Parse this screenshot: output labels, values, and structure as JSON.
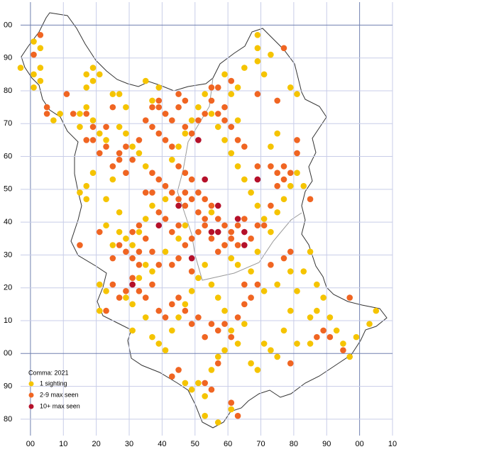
{
  "chart_data": {
    "type": "scatter",
    "legend_title": "Comma:  2021",
    "xlim": [
      -3,
      110
    ],
    "ylim": [
      -25,
      107
    ],
    "xticks": [
      {
        "value": 0,
        "label": "00"
      },
      10,
      20,
      30,
      40,
      50,
      60,
      70,
      80,
      90,
      {
        "value": 100,
        "label": "00"
      },
      {
        "value": 110,
        "label": "10"
      }
    ],
    "yticks": [
      {
        "value": 100,
        "label": "00"
      },
      90,
      80,
      70,
      60,
      50,
      40,
      30,
      20,
      10,
      {
        "value": 0,
        "label": "00"
      },
      {
        "value": -10,
        "label": "90"
      },
      {
        "value": -20,
        "label": "80"
      }
    ],
    "grid": true,
    "series": [
      {
        "name": "1 sighting",
        "color": "#f5c400",
        "x": [
          1,
          3,
          -3,
          1,
          3,
          1,
          3,
          7,
          9,
          17,
          19,
          17,
          19,
          21,
          15,
          17,
          15,
          19,
          21,
          23,
          25,
          27,
          29,
          27,
          29,
          31,
          33,
          35,
          25,
          23,
          17,
          19,
          15,
          17,
          27,
          23,
          27,
          29,
          25,
          31,
          33,
          35,
          37,
          41,
          35,
          37,
          33,
          21,
          23,
          21,
          29,
          31,
          31,
          35,
          37,
          39,
          41,
          43,
          45,
          47,
          49,
          51,
          53,
          55,
          57,
          59,
          61,
          63,
          65,
          67,
          69,
          71,
          73,
          75,
          77,
          79,
          81,
          83,
          85,
          87,
          89,
          91,
          93,
          95,
          97,
          99,
          105,
          103,
          47,
          49,
          51,
          53,
          55,
          57,
          59,
          53,
          57,
          61,
          43,
          45,
          47,
          49,
          51,
          53,
          55,
          57,
          59,
          61,
          63,
          65,
          67,
          69,
          71,
          73,
          75,
          77,
          79,
          81,
          83,
          61,
          63,
          59,
          65,
          69,
          69,
          71,
          69,
          73,
          79,
          81,
          75,
          73,
          41,
          45,
          47,
          55,
          59,
          61,
          63,
          67,
          69,
          71,
          75,
          79,
          81,
          85,
          85,
          87,
          63,
          39,
          37,
          35
        ],
        "y": [
          95,
          93,
          87,
          85,
          87,
          81,
          83,
          71,
          73,
          85,
          87,
          81,
          83,
          85,
          73,
          75,
          69,
          71,
          67,
          65,
          79,
          79,
          75,
          69,
          67,
          63,
          61,
          57,
          53,
          47,
          51,
          55,
          49,
          47,
          43,
          39,
          37,
          35,
          33,
          33,
          37,
          41,
          45,
          47,
          27,
          25,
          23,
          21,
          19,
          13,
          17,
          15,
          7,
          11,
          5,
          3,
          1,
          7,
          11,
          15,
          19,
          23,
          27,
          21,
          17,
          13,
          7,
          3,
          9,
          -3,
          -5,
          3,
          1,
          -1,
          7,
          13,
          19,
          25,
          31,
          21,
          17,
          11,
          7,
          3,
          -1,
          5,
          13,
          9,
          -9,
          -11,
          -9,
          -13,
          -5,
          -1,
          1,
          -19,
          -21,
          -17,
          59,
          63,
          67,
          71,
          75,
          79,
          73,
          69,
          65,
          61,
          57,
          53,
          49,
          45,
          41,
          37,
          43,
          47,
          51,
          55,
          51,
          79,
          81,
          85,
          87,
          93,
          89,
          85,
          97,
          91,
          81,
          79,
          67,
          63,
          31,
          35,
          39,
          43,
          33,
          29,
          27,
          25,
          31,
          19,
          21,
          25,
          3,
          3,
          11,
          13,
          71,
          81,
          77,
          83
        ]
      },
      {
        "name": "2-9 max seen",
        "color": "#f06522",
        "x": [
          1,
          3,
          11,
          5,
          5,
          13,
          17,
          19,
          17,
          19,
          21,
          23,
          25,
          23,
          27,
          25,
          29,
          27,
          29,
          31,
          33,
          35,
          37,
          39,
          41,
          43,
          45,
          47,
          49,
          51,
          53,
          55,
          57,
          59,
          37,
          39,
          41,
          43,
          45,
          47,
          49,
          51,
          53,
          55,
          57,
          59,
          61,
          63,
          65,
          67,
          69,
          71,
          73,
          75,
          77,
          79,
          81,
          81,
          85,
          37,
          39,
          41,
          43,
          45,
          47,
          37,
          39,
          41,
          43,
          45,
          47,
          49,
          51,
          53,
          55,
          57,
          59,
          61,
          63,
          35,
          33,
          31,
          29,
          27,
          25,
          33,
          31,
          25,
          27,
          29,
          31,
          33,
          35,
          37,
          39,
          41,
          43,
          45,
          47,
          49,
          51,
          53,
          55,
          57,
          59,
          61,
          63,
          65,
          67,
          69,
          65,
          57,
          53,
          45,
          43,
          55,
          61,
          63,
          79,
          87,
          89,
          91,
          95,
          97,
          73,
          77,
          79,
          15,
          21,
          23,
          37,
          49,
          39,
          55,
          57,
          61,
          75,
          77,
          69,
          45,
          47,
          39,
          41,
          59,
          61,
          63,
          65,
          69,
          73,
          75,
          77,
          47,
          49,
          51,
          53,
          35,
          43,
          45,
          33
        ],
        "y": [
          91,
          97,
          79,
          75,
          73,
          73,
          73,
          69,
          65,
          65,
          61,
          63,
          75,
          69,
          59,
          57,
          55,
          61,
          63,
          59,
          65,
          71,
          75,
          77,
          73,
          71,
          75,
          69,
          67,
          71,
          73,
          77,
          73,
          71,
          69,
          67,
          65,
          63,
          57,
          55,
          53,
          49,
          47,
          45,
          41,
          39,
          37,
          39,
          41,
          35,
          39,
          39,
          45,
          51,
          53,
          55,
          61,
          65,
          47,
          55,
          53,
          51,
          49,
          47,
          45,
          49,
          43,
          41,
          37,
          39,
          33,
          35,
          37,
          39,
          35,
          31,
          33,
          35,
          33,
          35,
          31,
          29,
          31,
          33,
          29,
          39,
          37,
          21,
          17,
          19,
          23,
          19,
          17,
          21,
          13,
          11,
          15,
          17,
          13,
          9,
          11,
          5,
          9,
          7,
          9,
          5,
          11,
          15,
          17,
          21,
          21,
          -3,
          -9,
          -5,
          -7,
          -11,
          -15,
          -19,
          -3,
          5,
          7,
          5,
          1,
          17,
          27,
          29,
          31,
          33,
          37,
          13,
          31,
          25,
          27,
          81,
          81,
          83,
          77,
          93,
          79,
          79,
          77,
          75,
          73,
          75,
          69,
          65,
          63,
          57,
          57,
          55,
          57,
          49,
          47,
          43,
          41,
          49,
          27,
          29,
          27
        ]
      },
      {
        "name": "10+ max seen",
        "color": "#b5102a",
        "x": [
          31,
          45,
          51,
          53,
          39,
          57,
          55,
          57,
          63,
          65,
          65,
          49,
          69
        ],
        "y": [
          21,
          45,
          65,
          53,
          39,
          45,
          37,
          37,
          41,
          37,
          33,
          29,
          53
        ]
      }
    ]
  }
}
